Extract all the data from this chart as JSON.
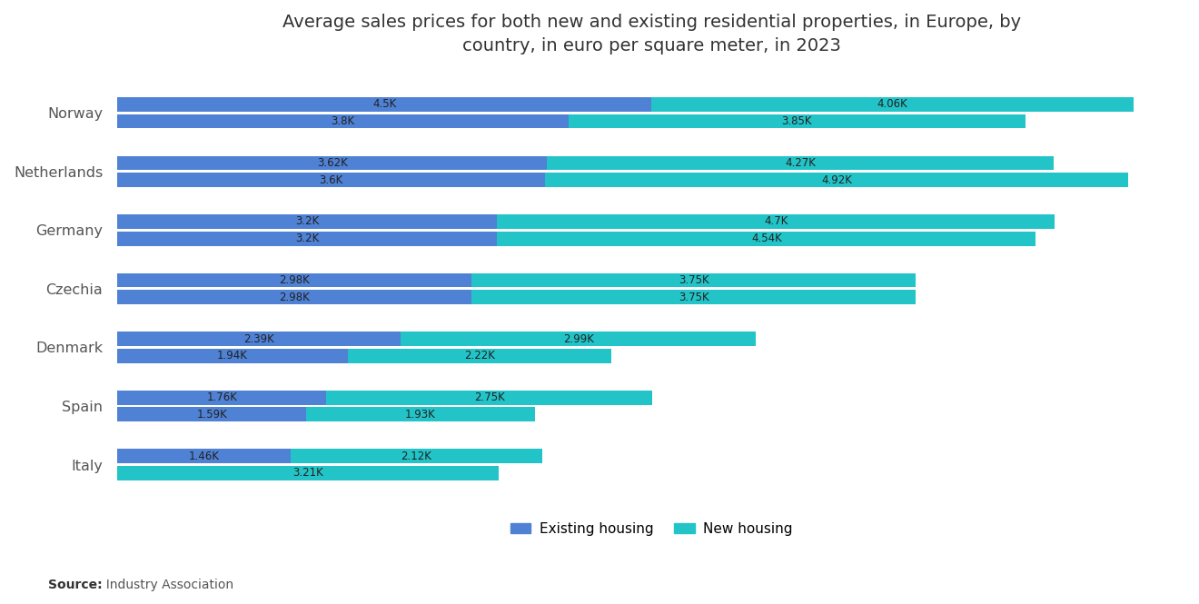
{
  "title": "Average sales prices for both new and existing residential properties, in Europe, by\ncountry, in euro per square meter, in 2023",
  "countries": [
    "Norway",
    "Netherlands",
    "Germany",
    "Czechia",
    "Denmark",
    "Spain",
    "Italy"
  ],
  "bars": [
    {
      "country": "Norway",
      "row": 0,
      "existing": 4500,
      "new": 4060,
      "existing_label": "4.5K",
      "new_label": "4.06K"
    },
    {
      "country": "Norway",
      "row": 1,
      "existing": 3800,
      "new": 3850,
      "existing_label": "3.8K",
      "new_label": "3.85K"
    },
    {
      "country": "Netherlands",
      "row": 0,
      "existing": 3620,
      "new": 4270,
      "existing_label": "3.62K",
      "new_label": "4.27K"
    },
    {
      "country": "Netherlands",
      "row": 1,
      "existing": 3600,
      "new": 4920,
      "existing_label": "3.6K",
      "new_label": "4.92K"
    },
    {
      "country": "Germany",
      "row": 0,
      "existing": 3200,
      "new": 4700,
      "existing_label": "3.2K",
      "new_label": "4.7K"
    },
    {
      "country": "Germany",
      "row": 1,
      "existing": 3200,
      "new": 4540,
      "existing_label": "3.2K",
      "new_label": "4.54K"
    },
    {
      "country": "Czechia",
      "row": 0,
      "existing": 2980,
      "new": 3750,
      "existing_label": "2.98K",
      "new_label": "3.75K"
    },
    {
      "country": "Czechia",
      "row": 1,
      "existing": 2980,
      "new": 3750,
      "existing_label": "2.98K",
      "new_label": "3.75K"
    },
    {
      "country": "Denmark",
      "row": 0,
      "existing": 2390,
      "new": 2990,
      "existing_label": "2.39K",
      "new_label": "2.99K"
    },
    {
      "country": "Denmark",
      "row": 1,
      "existing": 1940,
      "new": 2220,
      "existing_label": "1.94K",
      "new_label": "2.22K"
    },
    {
      "country": "Spain",
      "row": 0,
      "existing": 1760,
      "new": 2750,
      "existing_label": "1.76K",
      "new_label": "2.75K"
    },
    {
      "country": "Spain",
      "row": 1,
      "existing": 1590,
      "new": 1930,
      "existing_label": "1.59K",
      "new_label": "1.93K"
    },
    {
      "country": "Italy",
      "row": 0,
      "existing": 1460,
      "new": 2120,
      "existing_label": "1.46K",
      "new_label": "2.12K"
    },
    {
      "country": "Italy",
      "row": 1,
      "existing": 0,
      "new": 3210,
      "existing_label": "",
      "new_label": "3.21K"
    }
  ],
  "color_existing": "#4f81d4",
  "color_new": "#23c4c8",
  "background_color": "#FFFFFF",
  "source_label_bold": "Source:",
  "source_label_normal": "  Industry Association",
  "legend_existing": "Existing housing",
  "legend_new": "New housing",
  "xlim": 9000,
  "label_fontsize": 8.5,
  "ytick_fontsize": 11.5
}
